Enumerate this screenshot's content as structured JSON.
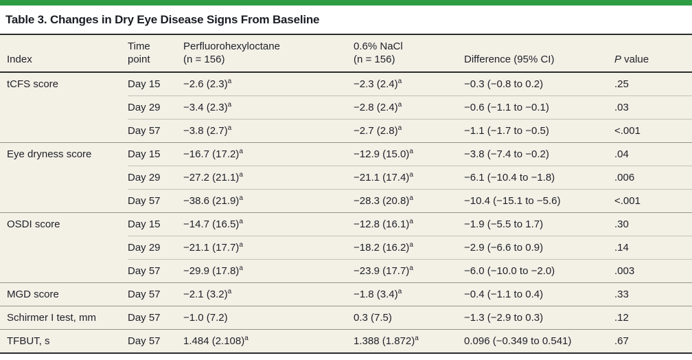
{
  "colors": {
    "accent_green_bar": "#2E9C42",
    "table_background": "#F3F0E6",
    "heavy_rule": "#2A2C2E",
    "group_rule": "#96938A",
    "sub_rule": "#C3C0B3",
    "text": "#20222A"
  },
  "title": "Table 3. Changes in Dry Eye Disease Signs From Baseline",
  "table": {
    "columns": {
      "index": {
        "label": "Index"
      },
      "time_point": {
        "line1": "Time",
        "line2": "point"
      },
      "pfho": {
        "line1": "Perfluorohexyloctane",
        "line2": "(n = 156)"
      },
      "nacl": {
        "line1": "0.6% NaCl",
        "line2": "(n = 156)"
      },
      "difference": {
        "label": "Difference (95% CI)"
      },
      "p_value": {
        "italic": "P",
        "rest": " value"
      }
    },
    "rows": [
      {
        "index": "tCFS score",
        "time": "Day 15",
        "pfho": "−2.6 (2.3)",
        "pfho_sup": "a",
        "nacl": "−2.3 (2.4)",
        "nacl_sup": "a",
        "diff": "−0.3 (−0.8 to 0.2)",
        "p": ".25",
        "group_start": true
      },
      {
        "index": "",
        "time": "Day 29",
        "pfho": "−3.4 (2.3)",
        "pfho_sup": "a",
        "nacl": "−2.8 (2.4)",
        "nacl_sup": "a",
        "diff": "−0.6 (−1.1 to −0.1)",
        "p": ".03",
        "group_start": false
      },
      {
        "index": "",
        "time": "Day 57",
        "pfho": "−3.8 (2.7)",
        "pfho_sup": "a",
        "nacl": "−2.7 (2.8)",
        "nacl_sup": "a",
        "diff": "−1.1 (−1.7 to −0.5)",
        "p": "<.001",
        "group_start": false
      },
      {
        "index": "Eye dryness score",
        "time": "Day 15",
        "pfho": "−16.7 (17.2)",
        "pfho_sup": "a",
        "nacl": "−12.9 (15.0)",
        "nacl_sup": "a",
        "diff": "−3.8 (−7.4 to −0.2)",
        "p": ".04",
        "group_start": true
      },
      {
        "index": "",
        "time": "Day 29",
        "pfho": "−27.2 (21.1)",
        "pfho_sup": "a",
        "nacl": "−21.1 (17.4)",
        "nacl_sup": "a",
        "diff": "−6.1 (−10.4 to −1.8)",
        "p": ".006",
        "group_start": false
      },
      {
        "index": "",
        "time": "Day 57",
        "pfho": "−38.6 (21.9)",
        "pfho_sup": "a",
        "nacl": "−28.3 (20.8)",
        "nacl_sup": "a",
        "diff": "−10.4 (−15.1 to −5.6)",
        "p": "<.001",
        "group_start": false
      },
      {
        "index": "OSDI score",
        "time": "Day 15",
        "pfho": "−14.7 (16.5)",
        "pfho_sup": "a",
        "nacl": "−12.8 (16.1)",
        "nacl_sup": "a",
        "diff": "−1.9 (−5.5 to 1.7)",
        "p": ".30",
        "group_start": true
      },
      {
        "index": "",
        "time": "Day 29",
        "pfho": "−21.1 (17.7)",
        "pfho_sup": "a",
        "nacl": "−18.2 (16.2)",
        "nacl_sup": "a",
        "diff": "−2.9 (−6.6 to 0.9)",
        "p": ".14",
        "group_start": false
      },
      {
        "index": "",
        "time": "Day 57",
        "pfho": "−29.9 (17.8)",
        "pfho_sup": "a",
        "nacl": "−23.9 (17.7)",
        "nacl_sup": "a",
        "diff": "−6.0 (−10.0 to −2.0)",
        "p": ".003",
        "group_start": false
      },
      {
        "index": "MGD score",
        "time": "Day 57",
        "pfho": "−2.1 (3.2)",
        "pfho_sup": "a",
        "nacl": "−1.8 (3.4)",
        "nacl_sup": "a",
        "diff": "−0.4 (−1.1 to 0.4)",
        "p": ".33",
        "group_start": true
      },
      {
        "index": "Schirmer I test, mm",
        "time": "Day 57",
        "pfho": "−1.0 (7.2)",
        "pfho_sup": "",
        "nacl": "0.3 (7.5)",
        "nacl_sup": "",
        "diff": "−1.3 (−2.9 to 0.3)",
        "p": ".12",
        "group_start": true
      },
      {
        "index": "TFBUT, s",
        "time": "Day 57",
        "pfho": "1.484 (2.108)",
        "pfho_sup": "a",
        "nacl": "1.388 (1.872)",
        "nacl_sup": "a",
        "diff": "0.096 (−0.349 to 0.541)",
        "p": ".67",
        "group_start": true
      }
    ]
  }
}
